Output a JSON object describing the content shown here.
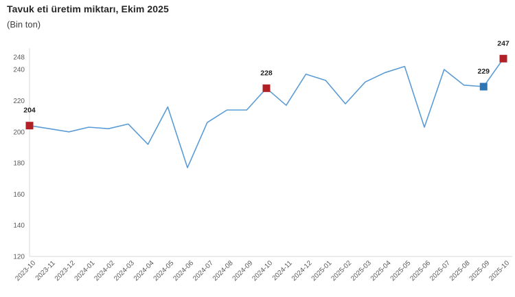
{
  "header": {
    "title": "Tavuk eti üretim miktarı, Ekim 2025",
    "subtitle": "(Bin ton)"
  },
  "chart_data": {
    "type": "line",
    "title": "Tavuk eti üretim miktarı, Ekim 2025",
    "subtitle": "(Bin ton)",
    "ylabel": "Bin ton",
    "xlabel": "",
    "categories": [
      "2023-10",
      "2023-11",
      "2023-12",
      "2024-01",
      "2024-02",
      "2024-03",
      "2024-04",
      "2024-05",
      "2024-06",
      "2024-07",
      "2024-08",
      "2024-09",
      "2024-10",
      "2024-11",
      "2024-12",
      "2025-01",
      "2025-02",
      "2025-03",
      "2025-04",
      "2025-05",
      "2025-06",
      "2025-07",
      "2025-08",
      "2025-09",
      "2025-10"
    ],
    "values": [
      204,
      202,
      200,
      203,
      202,
      205,
      192,
      216,
      177,
      206,
      214,
      214,
      228,
      217,
      237,
      233,
      218,
      232,
      238,
      242,
      203,
      240,
      230,
      229,
      247
    ],
    "ylim": [
      120,
      248
    ],
    "yticks": [
      120,
      140,
      160,
      180,
      200,
      220,
      240,
      248
    ],
    "grid": false,
    "legend": "none",
    "colors": {
      "line": "#5b9bd5",
      "axis_line": "#d9d9d9",
      "tick_label": "#595959",
      "marker_label": "#1f1f1f",
      "marker_red": "#b02026",
      "marker_blue": "#2e75b6"
    },
    "marked_points": [
      {
        "category": "2023-10",
        "index": 0,
        "value": 204,
        "label": "204",
        "color": "#b02026"
      },
      {
        "category": "2024-10",
        "index": 12,
        "value": 228,
        "label": "228",
        "color": "#b02026"
      },
      {
        "category": "2025-09",
        "index": 23,
        "value": 229,
        "label": "229",
        "color": "#2e75b6"
      },
      {
        "category": "2025-10",
        "index": 24,
        "value": 247,
        "label": "247",
        "color": "#b02026"
      }
    ]
  }
}
